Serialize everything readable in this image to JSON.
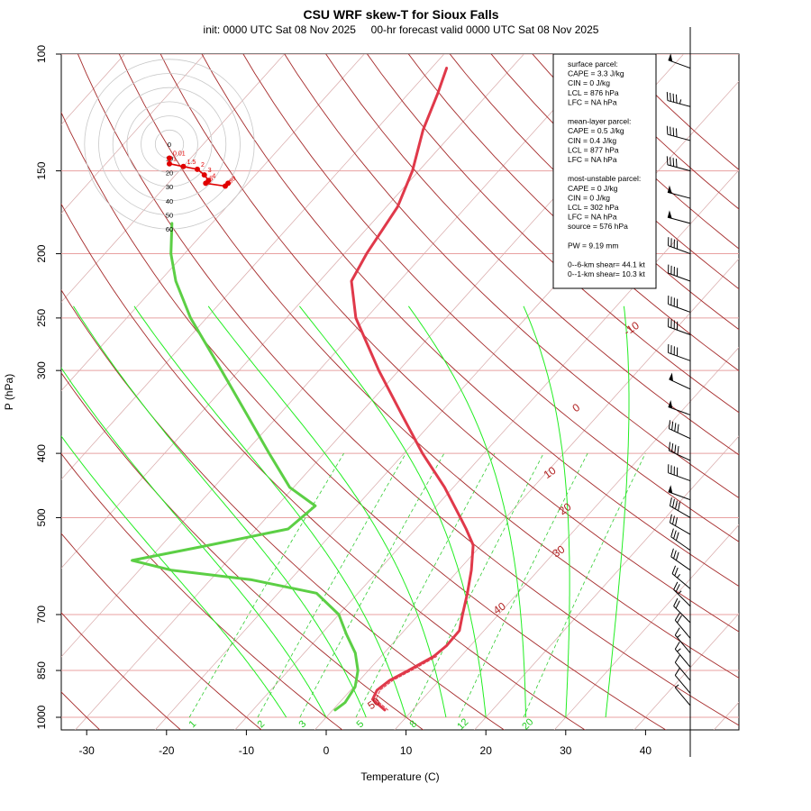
{
  "colors": {
    "temperature": "#e0394a",
    "dewpoint": "#5ccf45",
    "dry_adiabat": "#a52a2a",
    "moist_adiabat": "#22ee22",
    "mixing_ratio": "#33cc33",
    "isobar": "#e8a0a0",
    "isotherm": "#d8a8a8",
    "hodograph": "#e00000"
  },
  "chart_data": {
    "type": "skew-t",
    "title": "CSU WRF skew-T for Sioux Falls",
    "subtitle": "init: 0000 UTC Sat 08 Nov 2025     00-hr forecast valid 0000 UTC Sat 08 Nov 2025",
    "xlabel": "Temperature (C)",
    "ylabel": "P (hPa)",
    "x_ticks": [
      -30,
      -20,
      -10,
      0,
      10,
      20,
      30,
      40
    ],
    "y_ticks": [
      100,
      150,
      200,
      250,
      300,
      400,
      500,
      700,
      850,
      1000
    ],
    "isobars": [
      100,
      150,
      200,
      250,
      300,
      400,
      500,
      700,
      850,
      1000
    ],
    "dry_adiabat_labels": [
      {
        "label": "-10",
        "p": 262,
        "t": -5
      },
      {
        "label": "0",
        "p": 345,
        "t": -3
      },
      {
        "label": "10",
        "p": 432,
        "t": 1
      },
      {
        "label": "20",
        "p": 490,
        "t": 7
      },
      {
        "label": "30",
        "p": 568,
        "t": 11
      },
      {
        "label": "40",
        "p": 692,
        "t": 10
      },
      {
        "label": "50",
        "p": 963,
        "t": 5
      }
    ],
    "mixing_ratio_labels": [
      "1",
      "2",
      "3",
      "5",
      "8",
      "12",
      "20"
    ],
    "temperature_profile": [
      {
        "p": 975,
        "t": 6.5
      },
      {
        "p": 940,
        "t": 3.8
      },
      {
        "p": 910,
        "t": 3.3
      },
      {
        "p": 880,
        "t": 3.8
      },
      {
        "p": 850,
        "t": 5.0
      },
      {
        "p": 810,
        "t": 6.6
      },
      {
        "p": 780,
        "t": 7.0
      },
      {
        "p": 740,
        "t": 6.9
      },
      {
        "p": 700,
        "t": 5.5
      },
      {
        "p": 650,
        "t": 3.7
      },
      {
        "p": 600,
        "t": 1.6
      },
      {
        "p": 550,
        "t": -1.0
      },
      {
        "p": 520,
        "t": -3.7
      },
      {
        "p": 500,
        "t": -5.7
      },
      {
        "p": 450,
        "t": -11.1
      },
      {
        "p": 400,
        "t": -17.7
      },
      {
        "p": 350,
        "t": -24.6
      },
      {
        "p": 300,
        "t": -32.5
      },
      {
        "p": 250,
        "t": -41.3
      },
      {
        "p": 220,
        "t": -46.0
      },
      {
        "p": 200,
        "t": -47.2
      },
      {
        "p": 170,
        "t": -48.6
      },
      {
        "p": 150,
        "t": -50.8
      },
      {
        "p": 130,
        "t": -54.1
      },
      {
        "p": 115,
        "t": -56.3
      },
      {
        "p": 105,
        "t": -58.1
      }
    ],
    "dewpoint_profile": [
      {
        "p": 975,
        "t": 0.3
      },
      {
        "p": 950,
        "t": 0.7
      },
      {
        "p": 900,
        "t": 0.2
      },
      {
        "p": 850,
        "t": -1.3
      },
      {
        "p": 800,
        "t": -3.6
      },
      {
        "p": 750,
        "t": -6.8
      },
      {
        "p": 700,
        "t": -10.0
      },
      {
        "p": 650,
        "t": -15.2
      },
      {
        "p": 620,
        "t": -25.0
      },
      {
        "p": 600,
        "t": -36.0
      },
      {
        "p": 580,
        "t": -42.0
      },
      {
        "p": 550,
        "t": -34.0
      },
      {
        "p": 520,
        "t": -26.0
      },
      {
        "p": 480,
        "t": -25.2
      },
      {
        "p": 450,
        "t": -30.5
      },
      {
        "p": 400,
        "t": -36.9
      },
      {
        "p": 350,
        "t": -44.0
      },
      {
        "p": 300,
        "t": -52.2
      },
      {
        "p": 250,
        "t": -62.0
      },
      {
        "p": 220,
        "t": -68.0
      },
      {
        "p": 200,
        "t": -71.7
      },
      {
        "p": 180,
        "t": -75.0
      }
    ],
    "wind_barbs": [
      {
        "p": 105,
        "dir": 290,
        "spd": 50
      },
      {
        "p": 120,
        "dir": 285,
        "spd": 45
      },
      {
        "p": 135,
        "dir": 285,
        "spd": 40
      },
      {
        "p": 150,
        "dir": 285,
        "spd": 40
      },
      {
        "p": 165,
        "dir": 285,
        "spd": 50
      },
      {
        "p": 180,
        "dir": 285,
        "spd": 50
      },
      {
        "p": 200,
        "dir": 290,
        "spd": 40
      },
      {
        "p": 220,
        "dir": 290,
        "spd": 40
      },
      {
        "p": 245,
        "dir": 290,
        "spd": 40
      },
      {
        "p": 265,
        "dir": 290,
        "spd": 40
      },
      {
        "p": 290,
        "dir": 290,
        "spd": 40
      },
      {
        "p": 320,
        "dir": 295,
        "spd": 50
      },
      {
        "p": 350,
        "dir": 290,
        "spd": 50
      },
      {
        "p": 380,
        "dir": 295,
        "spd": 40
      },
      {
        "p": 410,
        "dir": 295,
        "spd": 40
      },
      {
        "p": 440,
        "dir": 290,
        "spd": 40
      },
      {
        "p": 470,
        "dir": 290,
        "spd": 50
      },
      {
        "p": 500,
        "dir": 300,
        "spd": 40
      },
      {
        "p": 530,
        "dir": 300,
        "spd": 30
      },
      {
        "p": 560,
        "dir": 305,
        "spd": 30
      },
      {
        "p": 600,
        "dir": 305,
        "spd": 30
      },
      {
        "p": 640,
        "dir": 310,
        "spd": 25
      },
      {
        "p": 680,
        "dir": 315,
        "spd": 25
      },
      {
        "p": 720,
        "dir": 315,
        "spd": 20
      },
      {
        "p": 760,
        "dir": 320,
        "spd": 20
      },
      {
        "p": 800,
        "dir": 320,
        "spd": 15
      },
      {
        "p": 840,
        "dir": 320,
        "spd": 15
      },
      {
        "p": 880,
        "dir": 320,
        "spd": 10
      },
      {
        "p": 920,
        "dir": 320,
        "spd": 10
      },
      {
        "p": 960,
        "dir": 320,
        "spd": 5
      }
    ],
    "hodograph": {
      "ring_labels": [
        "0",
        "10",
        "20",
        "30",
        "40",
        "50",
        "60"
      ],
      "points": [
        {
          "label": "0.01",
          "u": 0,
          "v": -10
        },
        {
          "label": "1",
          "u": 0,
          "v": -14
        },
        {
          "label": "1.5",
          "u": 10,
          "v": -16
        },
        {
          "label": "2",
          "u": 20,
          "v": -18
        },
        {
          "label": "3",
          "u": 25,
          "v": -22
        },
        {
          "label": "4",
          "u": 28,
          "v": -26
        },
        {
          "label": "5",
          "u": 26,
          "v": -28
        },
        {
          "label": "6",
          "u": 40,
          "v": -30
        },
        {
          "label": "8",
          "u": 42,
          "v": -28
        }
      ]
    },
    "info_box": [
      "surface parcel:",
      "CAPE = 3.3 J/kg",
      "CIN = 0 J/kg",
      "LCL = 876 hPa",
      "LFC = NA hPa",
      "",
      "mean-layer parcel:",
      "CAPE = 0.5 J/kg",
      "CIN = 0.4 J/kg",
      "LCL = 877 hPa",
      "LFC = NA hPa",
      "",
      "most-unstable parcel:",
      "CAPE = 0 J/kg",
      "CIN = 0 J/kg",
      "LCL = 302 hPa",
      "LFC = NA hPa",
      "source = 576 hPa",
      "",
      "PW =  9.19 mm",
      "",
      "0--6-km shear= 44.1 kt",
      "0--1-km shear= 10.3 kt"
    ]
  }
}
